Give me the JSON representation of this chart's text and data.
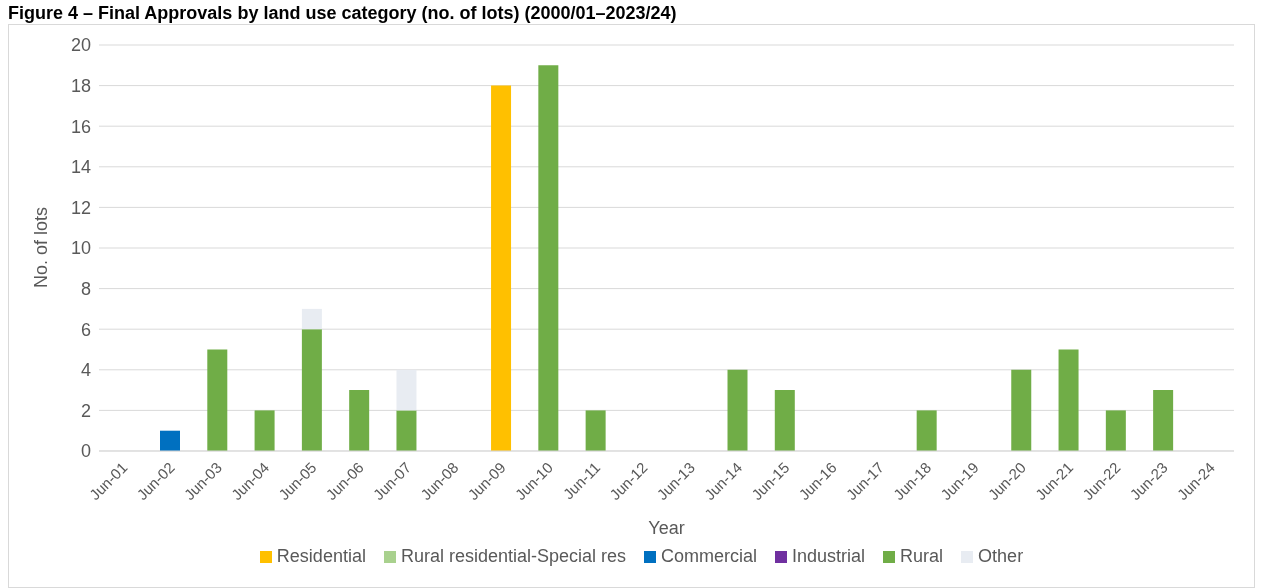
{
  "chart_data": {
    "type": "bar",
    "title": "Figure 4 – Final Approvals by land use category (no. of lots) (2000/01–2023/24)",
    "xlabel": "Year",
    "ylabel": "No. of lots",
    "categories": [
      "Jun-01",
      "Jun-02",
      "Jun-03",
      "Jun-04",
      "Jun-05",
      "Jun-06",
      "Jun-07",
      "Jun-08",
      "Jun-09",
      "Jun-10",
      "Jun-11",
      "Jun-12",
      "Jun-13",
      "Jun-14",
      "Jun-15",
      "Jun-16",
      "Jun-17",
      "Jun-18",
      "Jun-19",
      "Jun-20",
      "Jun-21",
      "Jun-22",
      "Jun-23",
      "Jun-24"
    ],
    "stacked": true,
    "ylim": [
      0,
      20
    ],
    "yticks": [
      0,
      2,
      4,
      6,
      8,
      10,
      12,
      14,
      16,
      18,
      20
    ],
    "grid": "y",
    "legend": "bottom",
    "series": [
      {
        "name": "Residential",
        "color": "#ffc000",
        "values": [
          null,
          null,
          null,
          null,
          null,
          null,
          null,
          null,
          18,
          null,
          null,
          null,
          null,
          null,
          null,
          null,
          null,
          null,
          null,
          null,
          null,
          null,
          null,
          null
        ]
      },
      {
        "name": "Rural residential-Special res",
        "color": "#a9d18e",
        "values": [
          null,
          null,
          null,
          null,
          null,
          null,
          null,
          null,
          null,
          null,
          null,
          null,
          null,
          null,
          null,
          null,
          null,
          null,
          null,
          null,
          null,
          null,
          null,
          null
        ]
      },
      {
        "name": "Commercial",
        "color": "#0070c0",
        "values": [
          null,
          1,
          null,
          null,
          null,
          null,
          null,
          null,
          null,
          null,
          null,
          null,
          null,
          null,
          null,
          null,
          null,
          null,
          null,
          null,
          null,
          null,
          null,
          null
        ]
      },
      {
        "name": "Industrial",
        "color": "#7030a0",
        "values": [
          null,
          null,
          null,
          null,
          null,
          null,
          null,
          null,
          null,
          null,
          null,
          null,
          null,
          null,
          null,
          null,
          null,
          null,
          null,
          null,
          null,
          null,
          null,
          null
        ]
      },
      {
        "name": "Rural",
        "color": "#70ad47",
        "values": [
          null,
          null,
          5,
          2,
          6,
          3,
          2,
          null,
          null,
          19,
          2,
          null,
          null,
          4,
          3,
          null,
          null,
          2,
          null,
          4,
          5,
          2,
          3,
          null
        ]
      },
      {
        "name": "Other",
        "color": "#e8ecf2",
        "values": [
          null,
          null,
          null,
          null,
          1,
          null,
          2,
          null,
          null,
          null,
          null,
          null,
          null,
          null,
          null,
          null,
          null,
          null,
          null,
          null,
          null,
          null,
          null,
          null
        ]
      }
    ]
  }
}
